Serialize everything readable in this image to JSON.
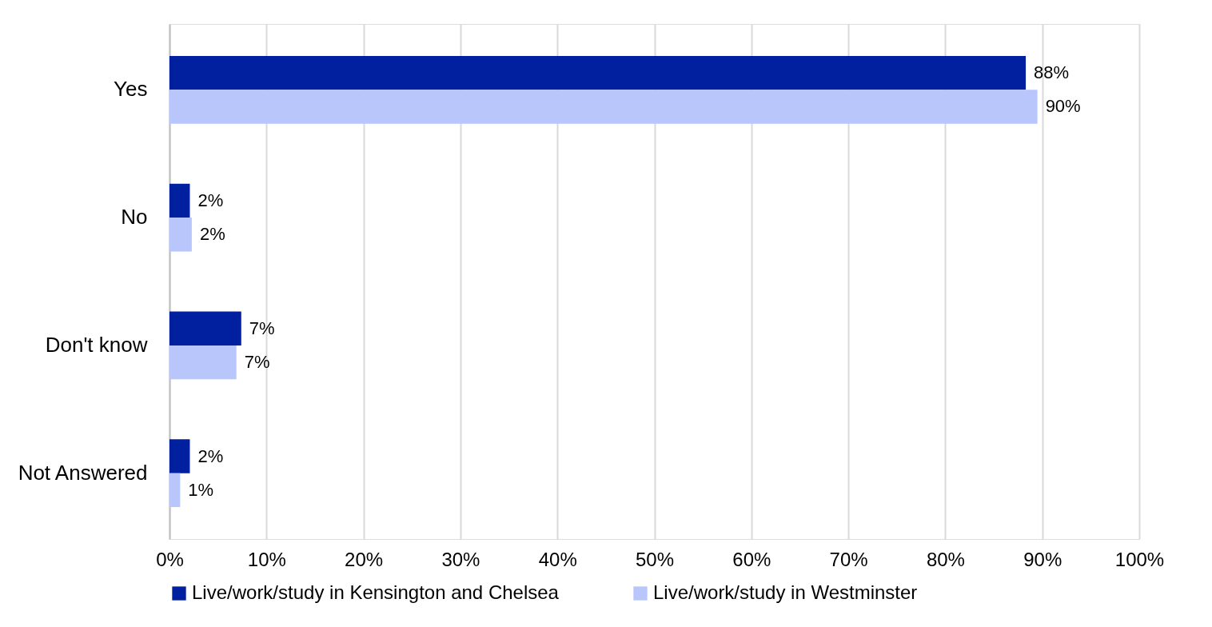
{
  "chart_data": {
    "type": "bar",
    "orientation": "horizontal",
    "categories": [
      "Yes",
      "No",
      "Don't know",
      "Not Answered"
    ],
    "series": [
      {
        "name": "Live/work/study in Kensington and Chelsea",
        "color": "#00209f",
        "values": [
          88.3,
          2.1,
          7.4,
          2.1
        ],
        "value_labels": [
          "88%",
          "2%",
          "7%",
          "2%"
        ]
      },
      {
        "name": "Live/work/study in Westminster",
        "color": "#b8c6fb",
        "values": [
          89.5,
          2.3,
          6.9,
          1.1
        ],
        "value_labels": [
          "90%",
          "2%",
          "7%",
          "1%"
        ]
      }
    ],
    "xlim": [
      0,
      100
    ],
    "xticks": [
      {
        "value": 0,
        "label": "0%"
      },
      {
        "value": 10,
        "label": "10%"
      },
      {
        "value": 20,
        "label": "20%"
      },
      {
        "value": 30,
        "label": "30%"
      },
      {
        "value": 40,
        "label": "40%"
      },
      {
        "value": 50,
        "label": "50%"
      },
      {
        "value": 60,
        "label": "60%"
      },
      {
        "value": 70,
        "label": "70%"
      },
      {
        "value": 80,
        "label": "80%"
      },
      {
        "value": 90,
        "label": "90%"
      },
      {
        "value": 100,
        "label": "100%"
      }
    ],
    "grid": "x",
    "legend": "bottom"
  }
}
